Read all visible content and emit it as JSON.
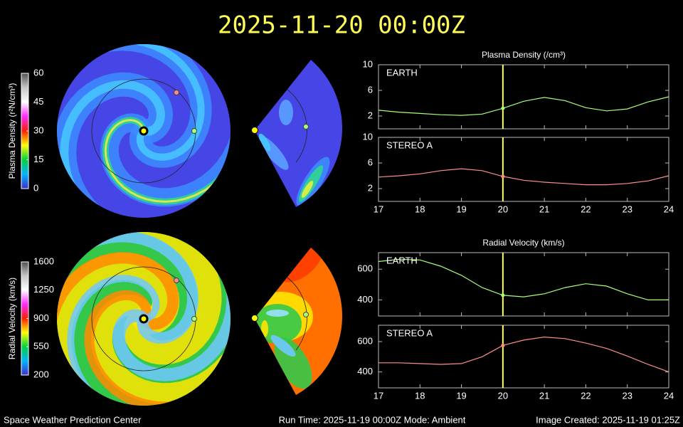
{
  "header": {
    "title": "2025-11-20 00:00Z"
  },
  "footer": {
    "left": "Space Weather Prediction Center",
    "center": "Run Time: 2025-11-19 00:00Z  Mode: Ambient",
    "right": "Image Created: 2025-11-19 01:25Z"
  },
  "chart_data": [
    {
      "type": "colorbar",
      "label": "Plasma Density (r²N/cm³)",
      "ylim": [
        0,
        60
      ],
      "yticks": [
        0,
        15,
        30,
        45,
        60
      ],
      "colors": [
        "#3a2fd0",
        "#00b4ff",
        "#00d23c",
        "#ffff00",
        "#ff1e00",
        "#ff28ff",
        "#ffffff",
        "#c8c8c8",
        "#505050"
      ]
    },
    {
      "type": "colorbar",
      "label": "Radial Velocity (km/s)",
      "ylim": [
        200,
        1600
      ],
      "yticks": [
        200,
        550,
        900,
        1250,
        1600
      ],
      "colors": [
        "#3a2fd0",
        "#00b4ff",
        "#00d23c",
        "#ffff00",
        "#ff1e00",
        "#ff28ff",
        "#ffffff",
        "#c8c8c8",
        "#505050"
      ]
    },
    {
      "type": "line",
      "title": "Plasma Density (/cm³)",
      "x": [
        17,
        17.5,
        18,
        18.5,
        19,
        19.5,
        20,
        20.5,
        21,
        21.5,
        22,
        22.5,
        23,
        23.5,
        24
      ],
      "xlim": [
        17,
        24
      ],
      "xticks": [
        17,
        18,
        19,
        20,
        21,
        22,
        23,
        24
      ],
      "ylim": [
        0,
        10
      ],
      "yticks": [
        2,
        6,
        10
      ],
      "marker_x": 20,
      "marker_color": "#ffff66",
      "series": [
        {
          "name": "EARTH",
          "color": "#a8ff78",
          "values": [
            2.9,
            2.6,
            2.4,
            2.2,
            2.1,
            2.3,
            3.2,
            4.3,
            4.9,
            4.4,
            3.3,
            2.8,
            3.1,
            4.2,
            5.0
          ]
        },
        {
          "name": "STEREO A",
          "color": "#ff8c8c",
          "values": [
            3.8,
            4.0,
            4.3,
            4.8,
            5.1,
            4.8,
            3.9,
            3.3,
            3.0,
            2.8,
            2.6,
            2.6,
            2.8,
            3.2,
            4.0
          ]
        }
      ]
    },
    {
      "type": "line",
      "title": "Radial Velocity (km/s)",
      "x": [
        17,
        17.5,
        18,
        18.5,
        19,
        19.5,
        20,
        20.5,
        21,
        21.5,
        22,
        22.5,
        23,
        23.5,
        24
      ],
      "xlim": [
        17,
        24
      ],
      "xticks": [
        17,
        18,
        19,
        20,
        21,
        22,
        23,
        24
      ],
      "ylim": [
        295,
        708
      ],
      "yticks": [
        400,
        600
      ],
      "marker_x": 20,
      "marker_color": "#ffff66",
      "series": [
        {
          "name": "EARTH",
          "color": "#a8ff78",
          "values": [
            650,
            665,
            660,
            620,
            560,
            480,
            430,
            420,
            440,
            480,
            505,
            490,
            440,
            400,
            400
          ]
        },
        {
          "name": "STEREO A",
          "color": "#ff8c8c",
          "values": [
            460,
            460,
            455,
            450,
            455,
            500,
            575,
            610,
            630,
            620,
            590,
            555,
            505,
            450,
            400
          ]
        }
      ]
    }
  ]
}
